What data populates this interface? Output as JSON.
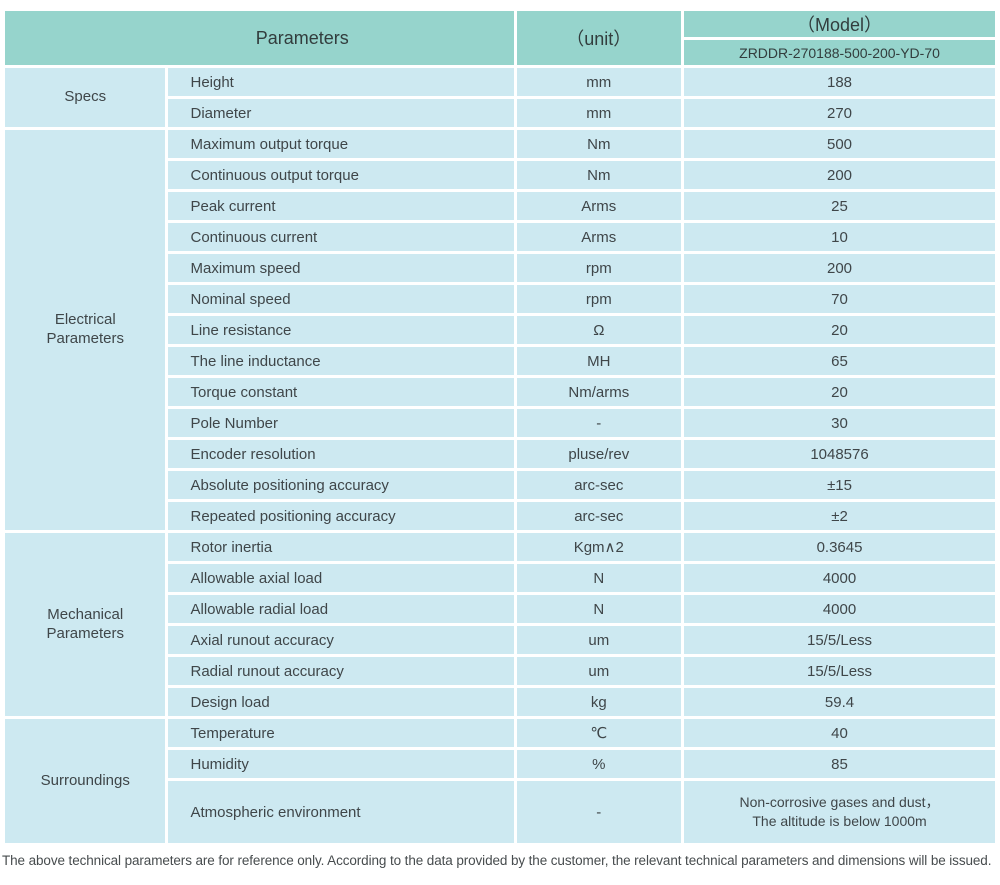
{
  "table": {
    "header": {
      "parameters": "Parameters",
      "unit": "（unit）",
      "model": "（Model）",
      "model_code": "ZRDDR-270188-500-200-YD-70"
    },
    "sections": [
      {
        "label": "Specs",
        "rows": [
          {
            "param": "Height",
            "unit": "mm",
            "value": "188"
          },
          {
            "param": "Diameter",
            "unit": "mm",
            "value": "270"
          }
        ]
      },
      {
        "label": "Electrical\nParameters",
        "rows": [
          {
            "param": "Maximum output torque",
            "unit": "Nm",
            "value": "500"
          },
          {
            "param": "Continuous output torque",
            "unit": "Nm",
            "value": "200"
          },
          {
            "param": "Peak current",
            "unit": "Arms",
            "value": "25"
          },
          {
            "param": "Continuous current",
            "unit": "Arms",
            "value": "10"
          },
          {
            "param": "Maximum speed",
            "unit": "rpm",
            "value": "200"
          },
          {
            "param": "Nominal speed",
            "unit": "rpm",
            "value": "70"
          },
          {
            "param": "Line resistance",
            "unit": "Ω",
            "value": "20"
          },
          {
            "param": "The line inductance",
            "unit": "MH",
            "value": "65"
          },
          {
            "param": "Torque constant",
            "unit": "Nm/arms",
            "value": "20"
          },
          {
            "param": "Pole Number",
            "unit": "-",
            "value": "30"
          },
          {
            "param": "Encoder resolution",
            "unit": "pluse/rev",
            "value": "1048576"
          },
          {
            "param": "Absolute positioning accuracy",
            "unit": "arc-sec",
            "value": "±15"
          },
          {
            "param": "Repeated positioning accuracy",
            "unit": "arc-sec",
            "value": "±2"
          }
        ]
      },
      {
        "label": "Mechanical\nParameters",
        "rows": [
          {
            "param": "Rotor inertia",
            "unit": "Kgm∧2",
            "value": "0.3645"
          },
          {
            "param": "Allowable axial load",
            "unit": "N",
            "value": "4000"
          },
          {
            "param": "Allowable radial load",
            "unit": "N",
            "value": "4000"
          },
          {
            "param": "Axial runout accuracy",
            "unit": "um",
            "value": "15/5/Less"
          },
          {
            "param": "Radial runout accuracy",
            "unit": "um",
            "value": "15/5/Less"
          },
          {
            "param": "Design load",
            "unit": "kg",
            "value": "59.4"
          }
        ]
      },
      {
        "label": "Surroundings",
        "rows": [
          {
            "param": "Temperature",
            "unit": "℃",
            "value": "40"
          },
          {
            "param": "Humidity",
            "unit": "%",
            "value": "85"
          },
          {
            "param": "Atmospheric environment",
            "unit": "-",
            "value": "Non-corrosive gases and dust，\nThe altitude is below 1000m"
          }
        ]
      }
    ]
  },
  "footnote": "The above technical parameters are for reference only. According to the data provided by the customer, the relevant technical parameters and dimensions will be issued.",
  "colors": {
    "header_bg": "#96d4cc",
    "cell_bg": "#cde9f1",
    "text": "#3f4649"
  }
}
